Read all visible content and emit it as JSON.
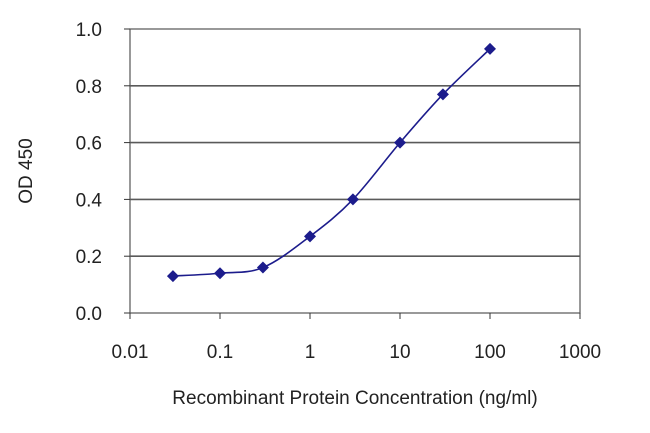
{
  "chart_data": {
    "type": "line",
    "xlabel": "Recombinant Protein Concentration (ng/ml)",
    "ylabel": "OD 450",
    "x_scale": "log",
    "xlim": [
      0.01,
      1000
    ],
    "ylim": [
      0,
      1.0
    ],
    "x_ticks": [
      0.01,
      0.1,
      1,
      10,
      100,
      1000
    ],
    "x_tick_labels": [
      "0.01",
      "0.1",
      "1",
      "10",
      "100",
      "1000"
    ],
    "y_ticks": [
      0,
      0.2,
      0.4,
      0.6,
      0.8,
      1.0
    ],
    "y_tick_labels": [
      "0.0",
      "0.2",
      "0.4",
      "0.6",
      "0.8",
      "1.0"
    ],
    "grid": "horizontal",
    "series": [
      {
        "x": [
          0.03,
          0.1,
          0.3,
          1,
          3,
          10,
          30,
          100
        ],
        "y": [
          0.13,
          0.14,
          0.16,
          0.27,
          0.4,
          0.6,
          0.77,
          0.93
        ],
        "color": "#1c1c8c",
        "marker": "diamond"
      }
    ],
    "colors": {
      "plot_background": "#ffffff",
      "grid": "#5a5a5a",
      "line": "#1c1c8c",
      "marker": "#1c1c8c"
    }
  }
}
